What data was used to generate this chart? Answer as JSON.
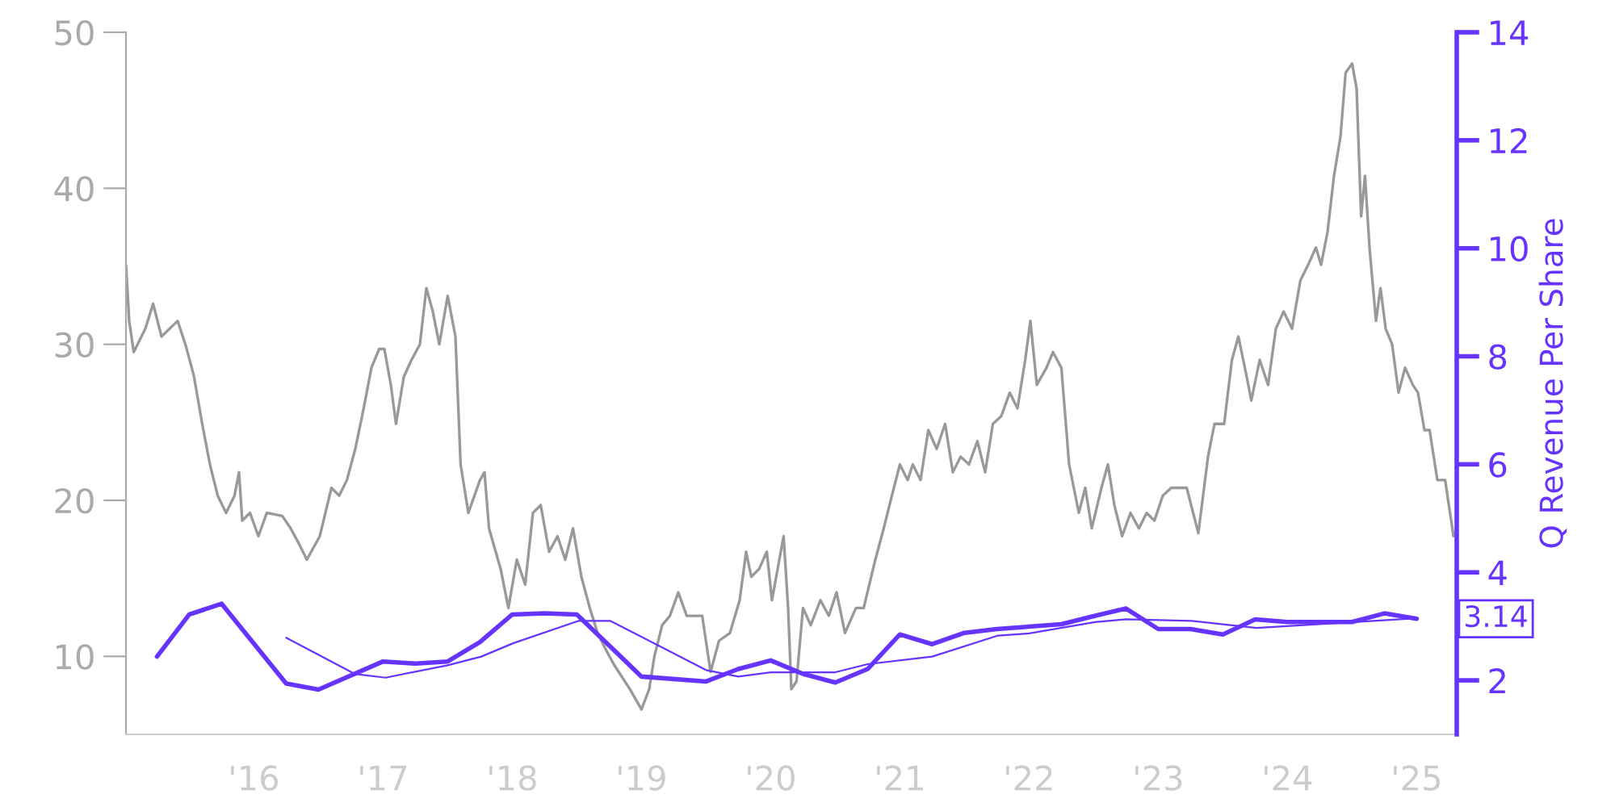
{
  "chart_data": {
    "type": "line",
    "y2label": "Q Revenue Per Share",
    "xlim": [
      2015.01,
      2025.31
    ],
    "xticks": [
      {
        "value": 2016,
        "label": "'16"
      },
      {
        "value": 2017,
        "label": "'17"
      },
      {
        "value": 2018,
        "label": "'18"
      },
      {
        "value": 2019,
        "label": "'19"
      },
      {
        "value": 2020,
        "label": "'20"
      },
      {
        "value": 2021,
        "label": "'21"
      },
      {
        "value": 2022,
        "label": "'22"
      },
      {
        "value": 2023,
        "label": "'23"
      },
      {
        "value": 2024,
        "label": "'24"
      },
      {
        "value": 2025,
        "label": "'25"
      }
    ],
    "ylim": [
      5,
      50
    ],
    "yticks": [
      10,
      20,
      30,
      40,
      50
    ],
    "y2lim": [
      1,
      14
    ],
    "y2ticks": [
      2,
      4,
      6,
      8,
      10,
      12,
      14
    ],
    "grid": false,
    "series": [
      {
        "color": "#999999",
        "axis": "y",
        "x": [
          2015.01,
          2015.035,
          2015.07,
          2015.16,
          2015.22,
          2015.285,
          2015.41,
          2015.47,
          2015.535,
          2015.6,
          2015.66,
          2015.72,
          2015.785,
          2015.85,
          2015.885,
          2015.91,
          2015.97,
          2016.035,
          2016.1,
          2016.22,
          2016.285,
          2016.35,
          2016.41,
          2016.51,
          2016.6,
          2016.66,
          2016.72,
          2016.785,
          2016.85,
          2016.91,
          2016.97,
          2017.01,
          2017.06,
          2017.1,
          2017.16,
          2017.22,
          2017.285,
          2017.335,
          2017.385,
          2017.435,
          2017.5,
          2017.56,
          2017.6,
          2017.66,
          2017.75,
          2017.785,
          2017.82,
          2017.91,
          2017.97,
          2018.035,
          2018.1,
          2018.16,
          2018.22,
          2018.285,
          2018.35,
          2018.41,
          2018.47,
          2018.535,
          2018.6,
          2018.66,
          2018.72,
          2018.785,
          2018.91,
          2019.0,
          2019.06,
          2019.1,
          2019.16,
          2019.22,
          2019.285,
          2019.35,
          2019.41,
          2019.47,
          2019.535,
          2019.6,
          2019.685,
          2019.76,
          2019.81,
          2019.85,
          2019.91,
          2019.97,
          2020.01,
          2020.1,
          2020.135,
          2020.16,
          2020.2,
          2020.25,
          2020.31,
          2020.385,
          2020.45,
          2020.51,
          2020.575,
          2020.66,
          2020.72,
          2020.81,
          2020.875,
          2020.935,
          2021.0,
          2021.06,
          2021.1,
          2021.16,
          2021.22,
          2021.285,
          2021.35,
          2021.41,
          2021.47,
          2021.535,
          2021.6,
          2021.66,
          2021.72,
          2021.785,
          2021.85,
          2021.91,
          2021.97,
          2022.01,
          2022.06,
          2022.135,
          2022.185,
          2022.25,
          2022.31,
          2022.385,
          2022.435,
          2022.485,
          2022.56,
          2022.61,
          2022.66,
          2022.72,
          2022.785,
          2022.85,
          2022.91,
          2022.97,
          2023.035,
          2023.1,
          2023.22,
          2023.31,
          2023.385,
          2023.435,
          2023.51,
          2023.57,
          2023.62,
          2023.685,
          2023.72,
          2023.785,
          2023.85,
          2023.91,
          2023.97,
          2024.035,
          2024.1,
          2024.16,
          2024.22,
          2024.26,
          2024.31,
          2024.36,
          2024.41,
          2024.45,
          2024.5,
          2024.535,
          2024.57,
          2024.6,
          2024.635,
          2024.685,
          2024.72,
          2024.76,
          2024.81,
          2024.86,
          2024.91,
          2024.97,
          2025.01,
          2025.06,
          2025.1,
          2025.16,
          2025.22,
          2025.285
        ],
        "values": [
          35.1,
          31.5,
          29.5,
          31.0,
          32.6,
          30.5,
          31.5,
          30.0,
          28.0,
          24.9,
          22.3,
          20.3,
          19.2,
          20.3,
          21.8,
          18.7,
          19.2,
          17.7,
          19.2,
          19.0,
          18.2,
          17.2,
          16.2,
          17.7,
          20.8,
          20.3,
          21.3,
          23.3,
          25.9,
          28.5,
          29.7,
          29.7,
          27.4,
          24.9,
          27.9,
          29.0,
          30.0,
          33.6,
          32.1,
          30.0,
          33.1,
          30.5,
          22.3,
          19.2,
          21.3,
          21.8,
          18.2,
          15.6,
          13.1,
          16.2,
          14.6,
          19.2,
          19.7,
          16.7,
          17.7,
          16.2,
          18.2,
          15.1,
          13.1,
          11.5,
          10.5,
          9.5,
          7.9,
          6.6,
          7.9,
          10.0,
          12.0,
          12.6,
          14.1,
          12.6,
          12.6,
          12.6,
          9.0,
          11.0,
          11.5,
          13.6,
          16.7,
          15.1,
          15.6,
          16.7,
          13.6,
          17.7,
          13.1,
          7.9,
          8.4,
          13.1,
          12.0,
          13.6,
          12.6,
          14.1,
          11.5,
          13.1,
          13.1,
          16.2,
          18.2,
          20.2,
          22.3,
          21.3,
          22.3,
          21.3,
          24.5,
          23.3,
          24.9,
          21.8,
          22.8,
          22.3,
          23.8,
          21.8,
          24.9,
          25.4,
          26.9,
          25.9,
          29.0,
          31.5,
          27.4,
          28.5,
          29.5,
          28.5,
          22.3,
          19.2,
          20.8,
          18.2,
          20.8,
          22.3,
          19.7,
          17.7,
          19.2,
          18.2,
          19.2,
          18.7,
          20.3,
          20.8,
          20.8,
          17.9,
          22.8,
          24.9,
          24.9,
          29.0,
          30.5,
          27.9,
          26.4,
          29.0,
          27.4,
          31.0,
          32.1,
          31.0,
          34.1,
          35.1,
          36.2,
          35.1,
          37.2,
          40.8,
          43.3,
          47.4,
          48.0,
          46.4,
          38.2,
          40.8,
          36.2,
          31.5,
          33.6,
          31.0,
          30.0,
          26.9,
          28.5,
          27.4,
          26.9,
          24.5,
          24.5,
          21.3,
          21.3,
          17.7
        ]
      },
      {
        "color": "#6633ff",
        "axis": "y2",
        "x": [
          2015.25,
          2015.5,
          2015.75,
          2016.25,
          2016.5,
          2017.0,
          2017.25,
          2017.5,
          2017.75,
          2018.0,
          2018.25,
          2018.5,
          2019.0,
          2019.5,
          2019.75,
          2020.0,
          2020.25,
          2020.5,
          2020.75,
          2021.0,
          2021.25,
          2021.5,
          2021.75,
          2022.25,
          2022.5,
          2022.75,
          2023.0,
          2023.25,
          2023.5,
          2023.75,
          2024.0,
          2024.5,
          2024.75,
          2025.0
        ],
        "values": [
          2.44,
          3.22,
          3.42,
          1.94,
          1.83,
          2.35,
          2.31,
          2.35,
          2.71,
          3.22,
          3.24,
          3.22,
          2.07,
          1.98,
          2.21,
          2.37,
          2.12,
          1.96,
          2.21,
          2.85,
          2.67,
          2.88,
          2.95,
          3.04,
          3.19,
          3.33,
          2.95,
          2.95,
          2.85,
          3.13,
          3.08,
          3.08,
          3.24,
          3.14
        ],
        "value_labels": [
          null,
          null,
          null,
          null,
          null,
          null,
          null,
          null,
          null,
          null,
          null,
          null,
          null,
          null,
          null,
          null,
          null,
          null,
          null,
          null,
          null,
          null,
          null,
          null,
          null,
          null,
          null,
          null,
          null,
          null,
          null,
          null,
          null,
          "3.14"
        ]
      },
      {
        "color": "#6633ff",
        "axis": "y2",
        "x": [
          2016.25,
          2016.78,
          2017.02,
          2017.5,
          2017.76,
          2018.01,
          2018.51,
          2018.76,
          2019.5,
          2019.75,
          2020.0,
          2020.5,
          2020.75,
          2021.25,
          2021.76,
          2022.0,
          2022.51,
          2022.75,
          2023.26,
          2023.76,
          2024.51,
          2025.0
        ],
        "values": [
          2.79,
          2.12,
          2.05,
          2.28,
          2.44,
          2.69,
          3.1,
          3.1,
          2.19,
          2.07,
          2.15,
          2.15,
          2.3,
          2.44,
          2.83,
          2.87,
          3.08,
          3.13,
          3.1,
          2.97,
          3.08,
          3.15
        ]
      }
    ]
  }
}
